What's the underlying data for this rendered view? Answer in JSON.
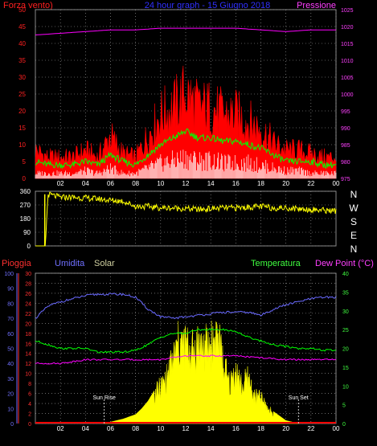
{
  "colors": {
    "background": "#000000",
    "wind_avg": "#ff0000",
    "wind_gust_env": "#ff0000",
    "wind_low": "#ffffff",
    "wind_mean": "#00ff00",
    "pressure": "#ff00ff",
    "direction": "#ffff00",
    "humidity": "#6a6aff",
    "solar": "#ffff00",
    "temperature": "#00ff00",
    "dewpoint": "#ff00ff",
    "rain": "#ff0000",
    "grid": "#aaaaaa",
    "axis_text": "#ffffff"
  },
  "chart_data": [
    {
      "type": "line",
      "title": "24 hour graph - 15 Giugno 2018",
      "left_label": "Forza vento)",
      "right_label": "Pressione",
      "x_ticks": [
        "02",
        "04",
        "06",
        "08",
        "10",
        "12",
        "14",
        "16",
        "18",
        "20",
        "22",
        "00"
      ],
      "y_left_ticks": [
        "0",
        "5",
        "10",
        "15",
        "20",
        "25",
        "30",
        "35",
        "40",
        "45",
        "50"
      ],
      "y_right_ticks": [
        "975",
        "980",
        "985",
        "990",
        "995",
        "1000",
        "1005",
        "1010",
        "1015",
        "1020",
        "1025"
      ],
      "ylim_left": [
        0,
        50
      ],
      "ylim_right": [
        975,
        1025
      ],
      "series": [
        {
          "name": "",
          "axis": "left",
          "color_key": "wind_avg",
          "x": [
            0,
            1,
            2,
            3,
            4,
            5,
            6,
            7,
            8,
            9,
            10,
            11,
            12,
            13,
            14,
            15,
            16,
            17,
            18,
            19,
            20,
            21,
            22,
            23,
            24
          ],
          "values": [
            8,
            6,
            6,
            6,
            8,
            6,
            12,
            7,
            6,
            12,
            18,
            20,
            24,
            20,
            20,
            18,
            18,
            16,
            14,
            10,
            8,
            8,
            7,
            6,
            6
          ]
        },
        {
          "name": "",
          "axis": "left",
          "color_key": "wind_mean",
          "x": [
            0,
            1,
            2,
            3,
            4,
            5,
            6,
            7,
            8,
            9,
            10,
            11,
            12,
            13,
            14,
            15,
            16,
            17,
            18,
            19,
            20,
            21,
            22,
            23,
            24
          ],
          "values": [
            5,
            4,
            4,
            4,
            5,
            4,
            7,
            5,
            4,
            7,
            10,
            12,
            14,
            12,
            12,
            11,
            11,
            10,
            9,
            7,
            5,
            5,
            5,
            4,
            4
          ]
        },
        {
          "name": "",
          "axis": "left",
          "color_key": "wind_low",
          "x": [
            0,
            1,
            2,
            3,
            4,
            5,
            6,
            7,
            8,
            9,
            10,
            11,
            12,
            13,
            14,
            15,
            16,
            17,
            18,
            19,
            20,
            21,
            22,
            23,
            24
          ],
          "values": [
            2,
            2,
            2,
            2,
            3,
            2,
            4,
            2,
            2,
            4,
            6,
            7,
            8,
            7,
            7,
            6,
            6,
            6,
            5,
            4,
            3,
            3,
            2,
            2,
            2
          ]
        },
        {
          "name": "",
          "axis": "right",
          "color_key": "pressure",
          "x": [
            0,
            2,
            4,
            6,
            8,
            10,
            12,
            14,
            16,
            18,
            20,
            22,
            24
          ],
          "values": [
            1017.5,
            1018,
            1018.5,
            1019,
            1019,
            1019.5,
            1019.5,
            1019.5,
            1019.5,
            1019,
            1018.5,
            1019,
            1019
          ]
        }
      ]
    },
    {
      "type": "line",
      "y_left_ticks": [
        "0",
        "90",
        "180",
        "270",
        "360"
      ],
      "direction_labels": [
        "N",
        "W",
        "S",
        "E",
        "N"
      ],
      "ylim": [
        0,
        360
      ],
      "series": [
        {
          "name": "",
          "color_key": "direction",
          "x": [
            0,
            0.8,
            1,
            2,
            3,
            4,
            5,
            6,
            7,
            8,
            9,
            10,
            11,
            12,
            13,
            14,
            15,
            16,
            17,
            18,
            19,
            20,
            21,
            22,
            23,
            24
          ],
          "values": [
            0,
            0,
            340,
            320,
            320,
            315,
            310,
            300,
            295,
            260,
            260,
            250,
            250,
            245,
            240,
            245,
            250,
            250,
            255,
            260,
            250,
            250,
            245,
            240,
            235,
            230
          ]
        }
      ]
    },
    {
      "type": "area",
      "labels": {
        "rain": "Pioggia",
        "humidity": "Umidita",
        "solar": "Solar",
        "temperature": "Temperatura",
        "dewpoint": "Dew Point (°C)"
      },
      "annotations": [
        "Sun Rise",
        "Sun Set"
      ],
      "annotation_x": [
        5.5,
        21
      ],
      "x_ticks": [
        "02",
        "04",
        "06",
        "08",
        "10",
        "12",
        "14",
        "16",
        "18",
        "20",
        "22",
        "00"
      ],
      "y_rain_ticks": [
        "0",
        "2",
        "4",
        "6",
        "8",
        "10",
        "12",
        "14",
        "16",
        "18",
        "20",
        "22",
        "24",
        "26",
        "28",
        "30"
      ],
      "y_humidity_ticks": [
        "0",
        "10",
        "20",
        "30",
        "40",
        "50",
        "60",
        "70",
        "80",
        "90",
        "100"
      ],
      "y_temp_ticks": [
        "0",
        "5",
        "10",
        "15",
        "20",
        "25",
        "30",
        "35",
        "40"
      ],
      "ylim_humidity": [
        0,
        100
      ],
      "ylim_temp": [
        0,
        40
      ],
      "ylim_rain": [
        0,
        30
      ],
      "series": [
        {
          "name": "",
          "axis": "humidity",
          "color_key": "humidity",
          "x": [
            0,
            1,
            2,
            3,
            4,
            5,
            6,
            7,
            8,
            9,
            10,
            11,
            12,
            13,
            14,
            15,
            16,
            17,
            18,
            19,
            20,
            21,
            22,
            23,
            24
          ],
          "values": [
            70,
            78,
            81,
            83,
            85,
            86,
            86,
            86,
            84,
            76,
            71,
            70,
            71,
            72,
            73,
            74,
            74,
            74,
            72,
            76,
            79,
            81,
            83,
            84,
            84
          ]
        },
        {
          "name": "",
          "axis": "temp",
          "color_key": "temperature",
          "x": [
            0,
            1,
            2,
            3,
            4,
            5,
            6,
            7,
            8,
            9,
            10,
            11,
            12,
            13,
            14,
            15,
            16,
            17,
            18,
            19,
            20,
            21,
            22,
            23,
            24
          ],
          "values": [
            22,
            21,
            20,
            20,
            20,
            19,
            19,
            19,
            19.5,
            21,
            23,
            24,
            24,
            25,
            25,
            25,
            24.5,
            23,
            22,
            21,
            20.5,
            20,
            20,
            19.5,
            19.5
          ]
        },
        {
          "name": "",
          "axis": "temp",
          "color_key": "dewpoint",
          "x": [
            0,
            2,
            4,
            6,
            8,
            10,
            12,
            14,
            16,
            18,
            20,
            22,
            24
          ],
          "values": [
            16,
            16,
            17,
            17,
            17,
            17,
            18,
            18,
            18,
            17.5,
            17,
            17,
            17
          ]
        },
        {
          "name": "",
          "axis": "humidity",
          "color_key": "solar",
          "x": [
            5.5,
            6,
            7,
            8,
            8.5,
            9,
            9.5,
            10,
            10.5,
            11,
            11.5,
            12,
            12.5,
            13,
            13.5,
            14,
            14.5,
            15,
            15.5,
            16,
            16.5,
            17,
            17.5,
            18,
            18.5,
            19,
            20,
            21
          ],
          "values": [
            0,
            1,
            3,
            6,
            10,
            15,
            22,
            28,
            35,
            50,
            62,
            60,
            55,
            62,
            58,
            60,
            70,
            45,
            30,
            40,
            28,
            35,
            20,
            20,
            12,
            8,
            2,
            0
          ]
        },
        {
          "name": "",
          "axis": "rain",
          "color_key": "rain",
          "x": [
            0,
            24
          ],
          "values": [
            0,
            0
          ]
        }
      ]
    }
  ]
}
